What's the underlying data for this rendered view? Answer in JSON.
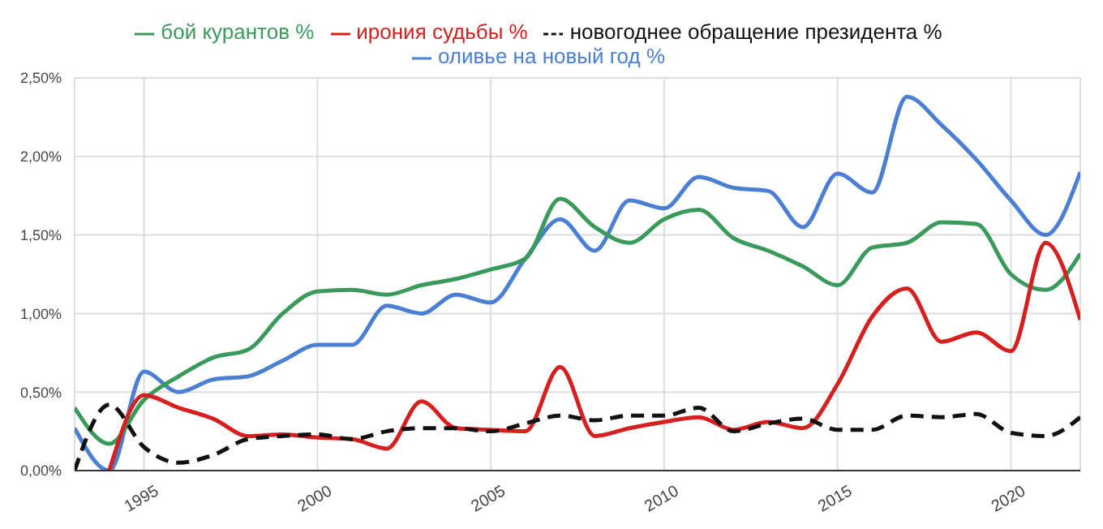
{
  "chart_data": {
    "type": "line",
    "x": [
      1993,
      1994,
      1995,
      1996,
      1997,
      1998,
      1999,
      2000,
      2001,
      2002,
      2003,
      2004,
      2005,
      2006,
      2007,
      2008,
      2009,
      2010,
      2011,
      2012,
      2013,
      2014,
      2015,
      2016,
      2017,
      2018,
      2019,
      2020,
      2021,
      2022
    ],
    "series": [
      {
        "name": "оливье на новый год %",
        "color": "#4a7fd4",
        "values": [
          0.27,
          0.0,
          0.63,
          0.5,
          0.58,
          0.6,
          0.7,
          0.8,
          0.8,
          1.05,
          1.0,
          1.12,
          1.07,
          1.35,
          1.6,
          1.4,
          1.72,
          1.67,
          1.87,
          1.8,
          1.78,
          1.55,
          1.89,
          1.77,
          2.38,
          2.2,
          1.98,
          1.72,
          1.5,
          1.9
        ]
      },
      {
        "name": "бой курантов %",
        "color": "#3a9a5b",
        "values": [
          0.4,
          0.17,
          0.45,
          0.6,
          0.72,
          0.77,
          1.0,
          1.14,
          1.15,
          1.12,
          1.18,
          1.22,
          1.28,
          1.35,
          1.73,
          1.55,
          1.45,
          1.6,
          1.66,
          1.48,
          1.4,
          1.3,
          1.18,
          1.42,
          1.45,
          1.58,
          1.57,
          1.25,
          1.15,
          1.38
        ]
      },
      {
        "name": "ирония судьбы %",
        "color": "#d62020",
        "values": [
          null,
          0.0,
          0.48,
          0.4,
          0.33,
          0.22,
          0.23,
          0.21,
          0.2,
          0.14,
          0.44,
          0.27,
          0.26,
          0.25,
          0.66,
          0.22,
          0.27,
          0.31,
          0.34,
          0.26,
          0.31,
          0.27,
          0.55,
          0.98,
          1.16,
          0.82,
          0.88,
          0.76,
          1.45,
          0.96
        ]
      },
      {
        "name": "новогоднее обращение президента %",
        "color": "#111111",
        "line_style": "dashed",
        "values": [
          0.0,
          0.42,
          0.15,
          0.05,
          0.1,
          0.2,
          0.22,
          0.23,
          0.2,
          0.25,
          0.27,
          0.27,
          0.25,
          0.3,
          0.35,
          0.32,
          0.35,
          0.35,
          0.4,
          0.25,
          0.3,
          0.33,
          0.26,
          0.26,
          0.35,
          0.34,
          0.36,
          0.24,
          0.22,
          0.34
        ]
      }
    ],
    "xlim": [
      1993,
      2022
    ],
    "xticks": [
      1995,
      2000,
      2005,
      2010,
      2015,
      2020
    ],
    "ylim": [
      0,
      2.5
    ],
    "yticks": [
      {
        "value": 0,
        "label": "0,00%"
      },
      {
        "value": 0.5,
        "label": "0,50%"
      },
      {
        "value": 1,
        "label": "1,00%"
      },
      {
        "value": 1.5,
        "label": "1,50%"
      },
      {
        "value": 2,
        "label": "2,00%"
      },
      {
        "value": 2.5,
        "label": "2,50%"
      }
    ],
    "grid": true,
    "legend": "top",
    "line_style": "solid",
    "marker": "none"
  }
}
